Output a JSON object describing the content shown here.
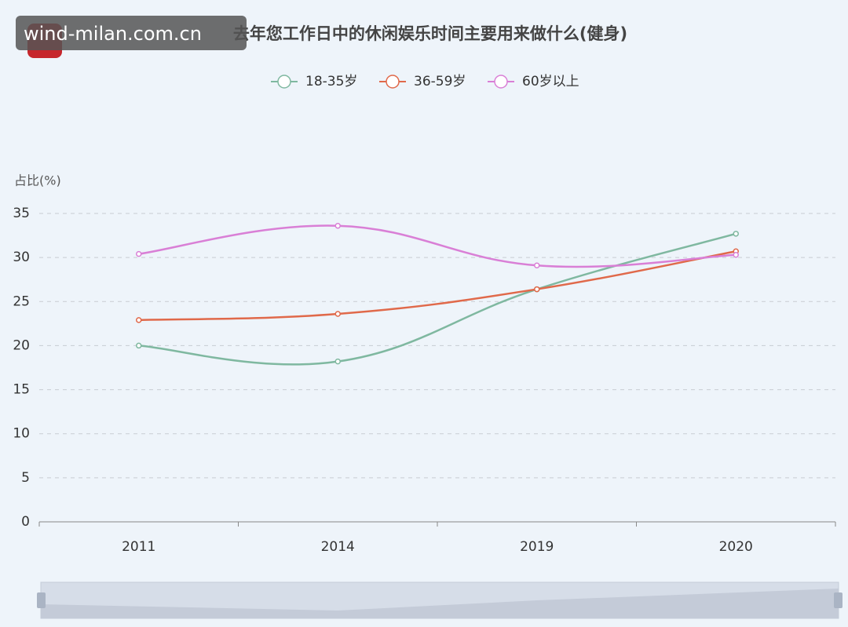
{
  "watermark": "wind-milan.com.cn",
  "chart_data": {
    "type": "line",
    "title": "去年您工作日中的休闲娱乐时间主要用来做什么(健身)",
    "y_label": "占比(%)",
    "categories": [
      "2011",
      "2014",
      "2019",
      "2020"
    ],
    "series": [
      {
        "name": "18-35岁",
        "color": "#7fb8a0",
        "values": [
          20.0,
          18.2,
          26.4,
          32.7
        ]
      },
      {
        "name": "36-59岁",
        "color": "#e0694a",
        "values": [
          22.9,
          23.6,
          26.4,
          30.7
        ]
      },
      {
        "name": "60岁以上",
        "color": "#d97fd6",
        "values": [
          30.4,
          33.6,
          29.1,
          30.3
        ]
      }
    ],
    "ylim": [
      0,
      35
    ],
    "yticks": [
      0,
      5,
      10,
      15,
      20,
      25,
      30,
      35
    ],
    "grid": true,
    "legend": "top"
  }
}
